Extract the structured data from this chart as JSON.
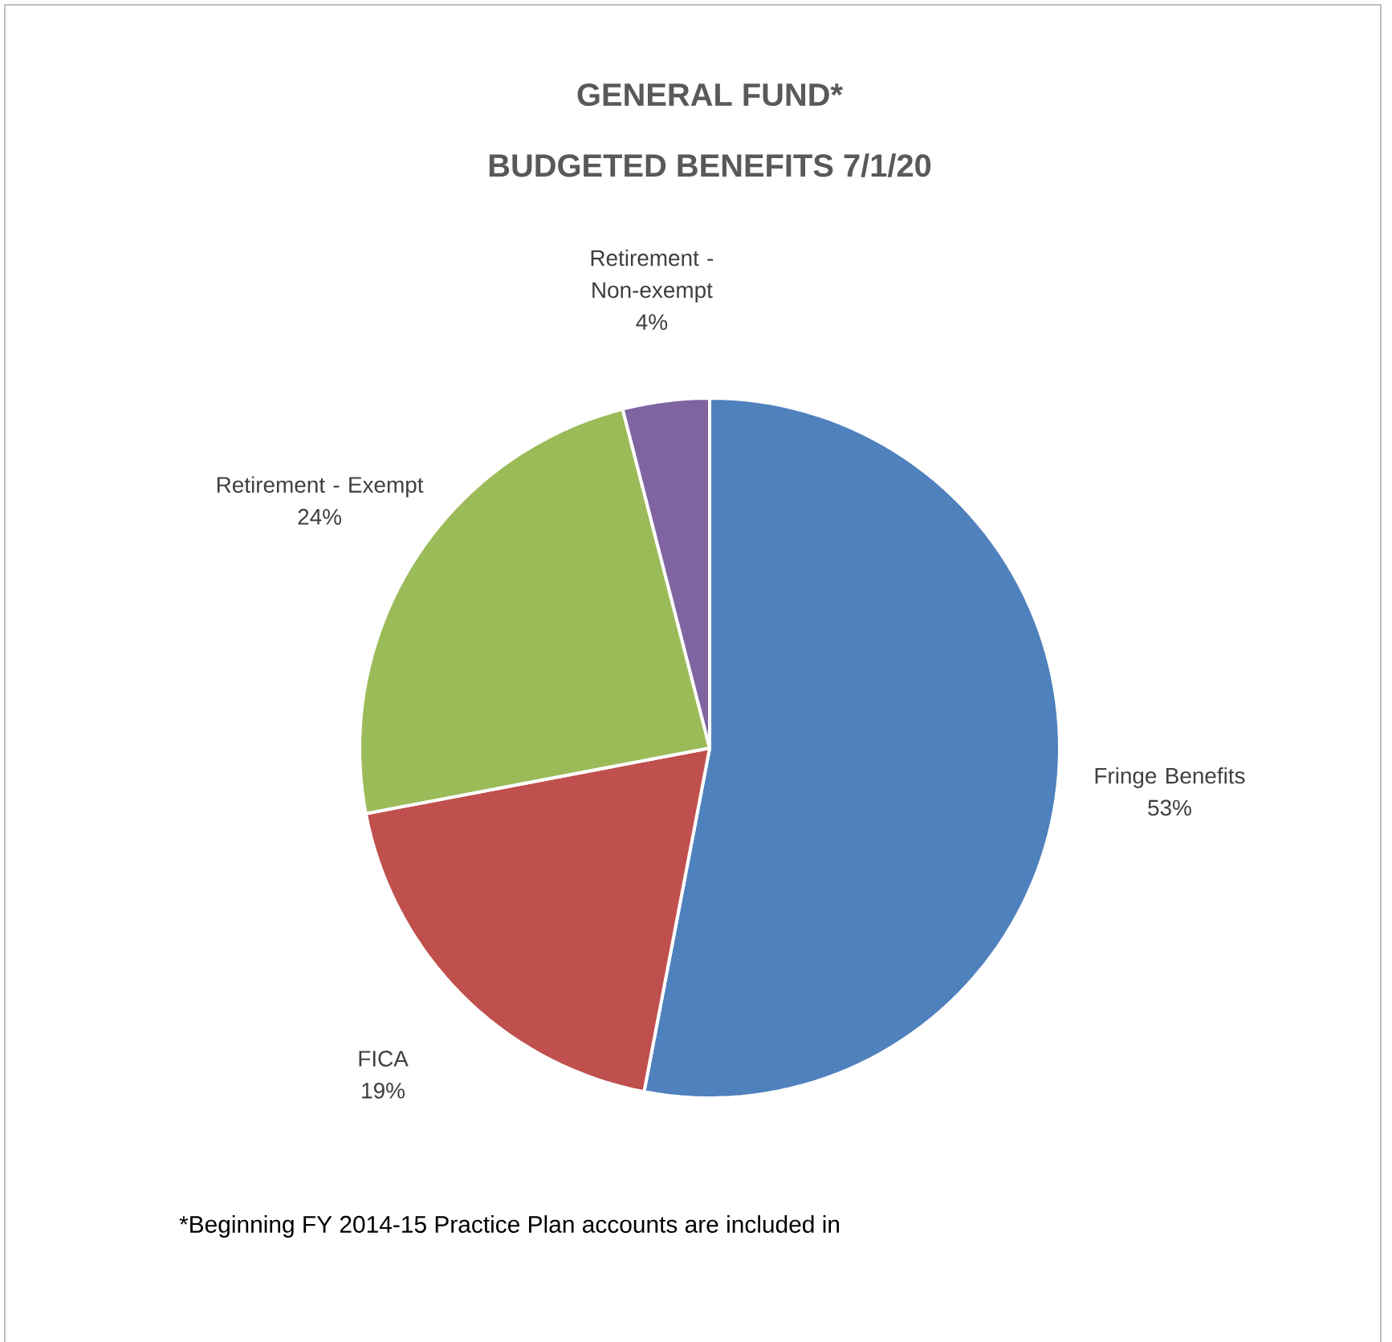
{
  "chart_data": {
    "type": "pie",
    "title": "GENERAL FUND*",
    "subtitle": "BUDGETED BENEFITS 7/1/20",
    "categories": [
      "Fringe Benefits",
      "FICA",
      "Retirement - Exempt",
      "Retirement - Non-exempt"
    ],
    "values": [
      53,
      19,
      24,
      4
    ],
    "value_labels": [
      "53%",
      "19%",
      "24%",
      "4%"
    ],
    "colors": [
      "#4f81bd",
      "#c0504d",
      "#9bbb59",
      "#8064a2"
    ],
    "annotations": [
      "*Beginning FY 2014-15 Practice Plan accounts are included in"
    ]
  }
}
